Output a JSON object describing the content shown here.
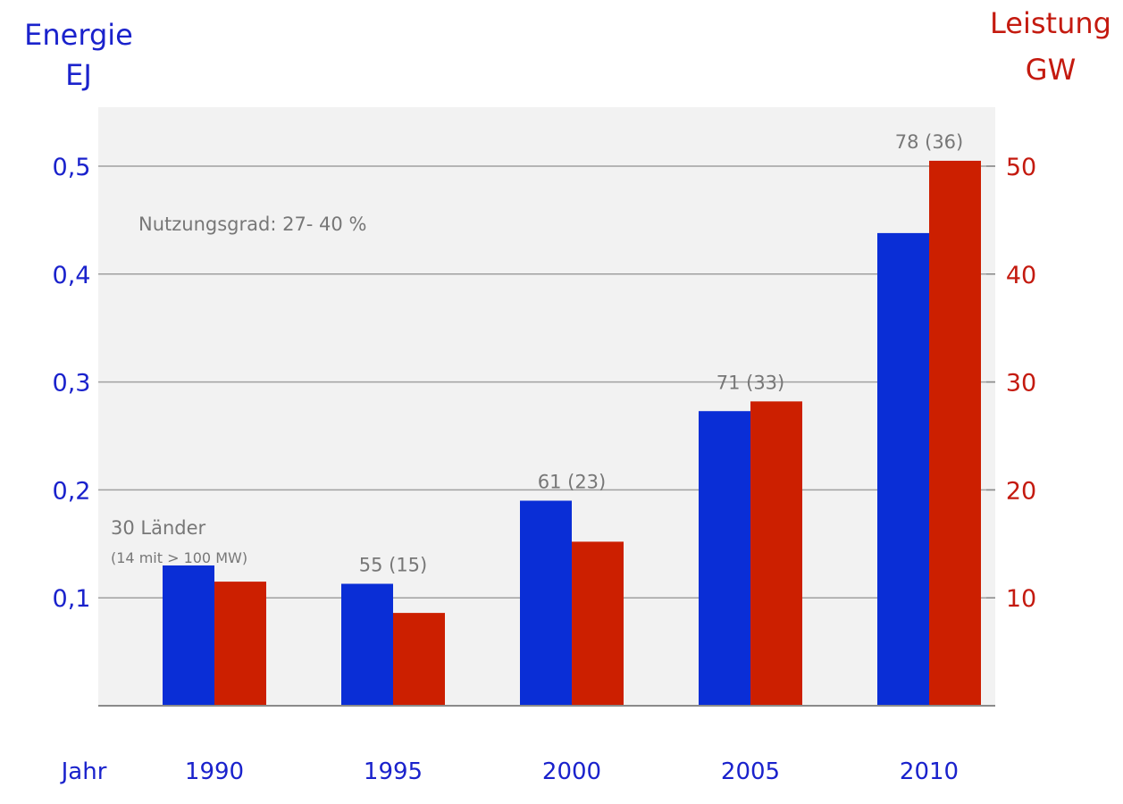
{
  "chart_data": {
    "type": "bar",
    "categories": [
      "1990",
      "1995",
      "2000",
      "2005",
      "2010"
    ],
    "x_axis_label": "Jahr",
    "left_axis": {
      "title_line1": "Energie",
      "title_line2": "EJ",
      "range": [
        0,
        0.55
      ],
      "ticks": [
        {
          "value": 0.1,
          "label": "0,1"
        },
        {
          "value": 0.2,
          "label": "0,2"
        },
        {
          "value": 0.3,
          "label": "0,3"
        },
        {
          "value": 0.4,
          "label": "0,4"
        },
        {
          "value": 0.5,
          "label": "0,5"
        }
      ]
    },
    "right_axis": {
      "title_line1": "Leistung",
      "title_line2": "GW",
      "range": [
        0,
        55
      ],
      "ticks": [
        {
          "value": 10,
          "label": "10"
        },
        {
          "value": 20,
          "label": "20"
        },
        {
          "value": 30,
          "label": "30"
        },
        {
          "value": 40,
          "label": "40"
        },
        {
          "value": 50,
          "label": "50"
        }
      ]
    },
    "series": [
      {
        "axis": "left",
        "color": "#0a2ed6",
        "values": [
          0.13,
          0.113,
          0.19,
          0.273,
          0.438
        ]
      },
      {
        "axis": "right",
        "color": "#cc1f00",
        "values": [
          11.5,
          8.6,
          15.2,
          28.2,
          50.5
        ]
      }
    ],
    "bar_labels": [
      "",
      "55 (15)",
      "61 (23)",
      "71 (33)",
      "78 (36)"
    ],
    "annotations": {
      "note": "Nutzungsgrad: 27- 40 %",
      "first_line1": "30 Länder",
      "first_line2": "(14 mit > 100 MW)"
    },
    "grid": true,
    "plot_background": "#f2f2f2",
    "gridline_color": "#a0a0a0"
  }
}
